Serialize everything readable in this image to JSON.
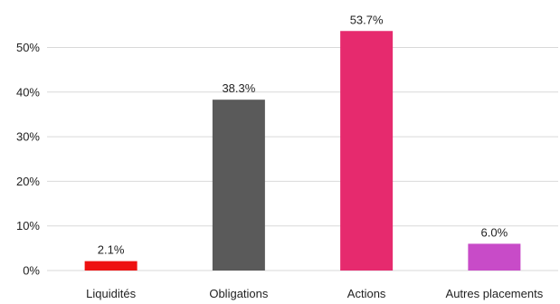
{
  "chart_data": {
    "type": "bar",
    "categories": [
      "Liquidités",
      "Obligations",
      "Actions",
      "Autres placements"
    ],
    "values": [
      2.1,
      38.3,
      53.7,
      6.0
    ],
    "data_labels": [
      "2.1%",
      "38.3%",
      "53.7%",
      "6.0%"
    ],
    "colors": [
      "#ee1111",
      "#5a5a5a",
      "#e62a6e",
      "#c84bc8"
    ],
    "yticks": [
      0,
      10,
      20,
      30,
      40,
      50
    ],
    "ytick_labels": [
      "0%",
      "10%",
      "20%",
      "30%",
      "40%",
      "50%"
    ],
    "ylim": [
      0,
      56
    ],
    "grid": true,
    "legend": "none"
  }
}
